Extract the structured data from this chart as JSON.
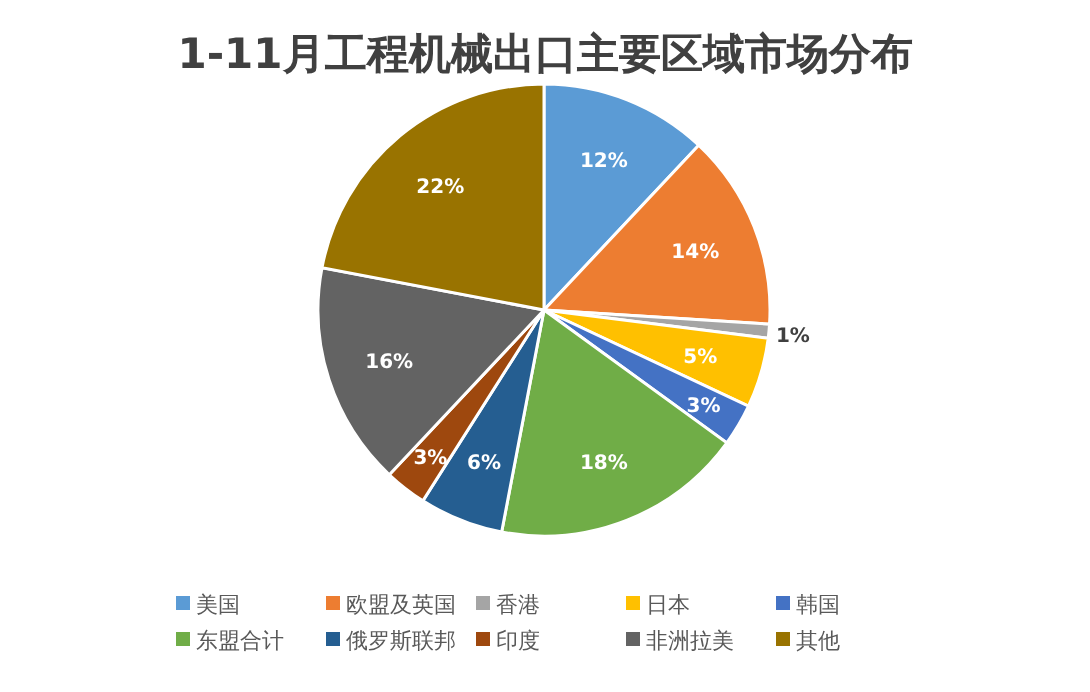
{
  "chart_data": {
    "type": "pie",
    "title": "1-11月工程机械出口主要区域市场分布",
    "categories": [
      "美国",
      "欧盟及英国",
      "香港",
      "日本",
      "韩国",
      "东盟合计",
      "俄罗斯联邦",
      "印度",
      "非洲拉美",
      "其他"
    ],
    "values": [
      12,
      14,
      1,
      5,
      3,
      18,
      6,
      3,
      16,
      22
    ],
    "value_labels": [
      "12%",
      "14%",
      "1%",
      "5%",
      "3%",
      "18%",
      "6%",
      "3%",
      "16%",
      "22%"
    ],
    "colors": [
      "#5b9bd5",
      "#ed7d31",
      "#a5a5a5",
      "#ffc000",
      "#4472c4",
      "#70ad47",
      "#255e91",
      "#9e480e",
      "#636363",
      "#997300"
    ],
    "legend": "bottom"
  }
}
